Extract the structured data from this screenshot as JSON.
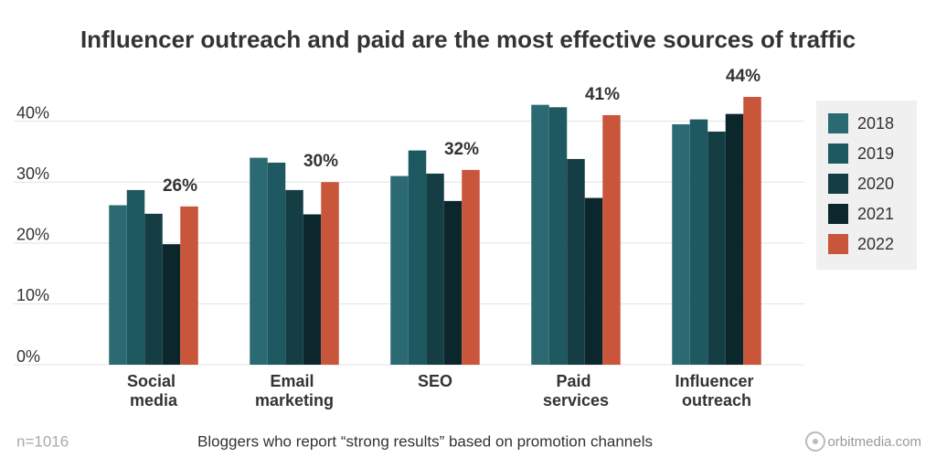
{
  "chart_data": {
    "type": "bar",
    "title": "Influencer outreach and paid are the most effective sources of traffic",
    "categories": [
      "Social media",
      "Email marketing",
      "SEO",
      "Paid services",
      "Influencer outreach"
    ],
    "series": [
      {
        "name": "2018",
        "color": "#2b6a72",
        "values": [
          26.2,
          34,
          31,
          42.7,
          39.5
        ]
      },
      {
        "name": "2019",
        "color": "#1e5860",
        "values": [
          28.7,
          33.2,
          35.2,
          42.3,
          40.3
        ]
      },
      {
        "name": "2020",
        "color": "#143e44",
        "values": [
          24.8,
          28.7,
          31.4,
          33.8,
          38.3
        ]
      },
      {
        "name": "2021",
        "color": "#0c272c",
        "values": [
          19.8,
          24.7,
          26.9,
          27.4,
          41.2
        ]
      },
      {
        "name": "2022",
        "color": "#c9553b",
        "values": [
          26,
          30,
          32,
          41,
          44
        ],
        "value_labels": [
          "26%",
          "30%",
          "32%",
          "41%",
          "44%"
        ]
      }
    ],
    "ylim": [
      0,
      44
    ],
    "yticks": [
      {
        "value": 0,
        "label": "0%"
      },
      {
        "value": 10,
        "label": "10%"
      },
      {
        "value": 20,
        "label": "20%"
      },
      {
        "value": 30,
        "label": "30%"
      },
      {
        "value": 40,
        "label": "40%"
      }
    ],
    "grid": true,
    "legend": "right",
    "note": "n=1016",
    "caption": "Bloggers who report “strong results” based on promotion channels",
    "source": "orbitmedia.com"
  }
}
